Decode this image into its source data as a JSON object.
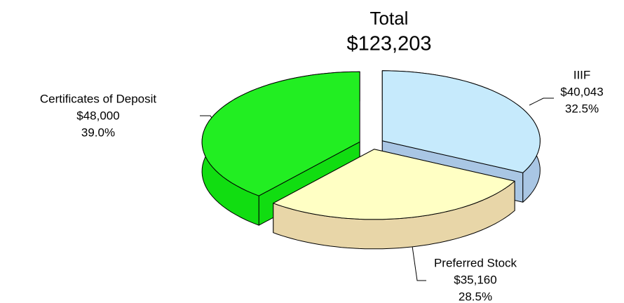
{
  "chart_data": {
    "type": "pie3d",
    "title": "Total",
    "subtitle": "$123,203",
    "categories": [
      "IIIF",
      "Preferred Stock",
      "Certificates of Deposit"
    ],
    "values": [
      40043,
      35160,
      48000
    ],
    "value_labels": [
      "$40,043",
      "$35,160",
      "$48,000"
    ],
    "percent_labels": [
      "32.5%",
      "28.5%",
      "39.0%"
    ],
    "colors": [
      "#c6eafc",
      "#ffffc4",
      "#22ee22"
    ],
    "side_colors": [
      "#a9c6e4",
      "#e8d6a8",
      "#11dd11"
    ]
  }
}
